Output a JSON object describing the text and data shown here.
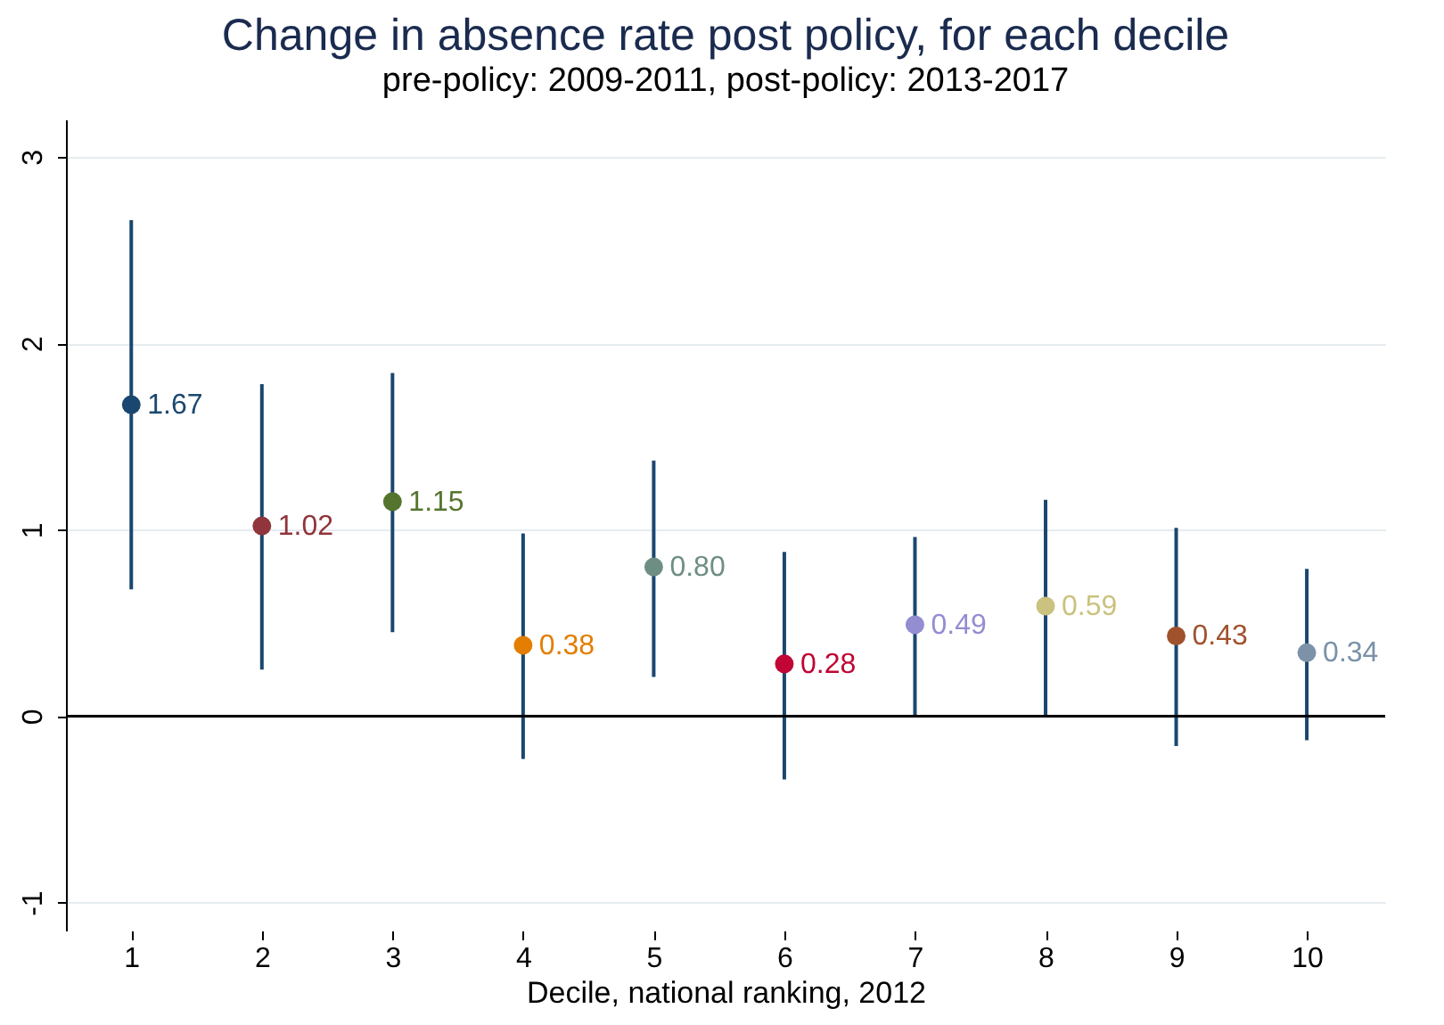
{
  "chart_data": {
    "type": "scatter",
    "title": "Change in absence rate post policy, for each decile",
    "subtitle": "pre-policy: 2009-2011, post-policy: 2013-2017",
    "xlabel": "Decile, national ranking, 2012",
    "x": [
      1,
      2,
      3,
      4,
      5,
      6,
      7,
      8,
      9,
      10
    ],
    "values": [
      1.67,
      1.02,
      1.15,
      0.38,
      0.8,
      0.28,
      0.49,
      0.59,
      0.43,
      0.34
    ],
    "errors": [
      [
        0.68,
        2.66
      ],
      [
        0.25,
        1.78
      ],
      [
        0.45,
        1.84
      ],
      [
        -0.23,
        0.98
      ],
      [
        0.21,
        1.37
      ],
      [
        -0.34,
        0.88
      ],
      [
        0.0,
        0.96
      ],
      [
        0.0,
        1.16
      ],
      [
        -0.16,
        1.01
      ],
      [
        -0.13,
        0.79
      ]
    ],
    "colors": [
      "#1a476f",
      "#90353b",
      "#55752f",
      "#e37e00",
      "#6e8e84",
      "#c10534",
      "#938dd2",
      "#cac27e",
      "#a0522d",
      "#7b92a8"
    ],
    "xlim": [
      0.5,
      10.6
    ],
    "xticks": [
      1,
      2,
      3,
      4,
      5,
      6,
      7,
      8,
      9,
      10
    ],
    "ylim": [
      -1.15,
      3.2
    ],
    "yticks": [
      -1,
      0,
      1,
      2,
      3
    ],
    "ref_lines": [
      {
        "axis": "y",
        "value": 0,
        "color": "#000000"
      }
    ],
    "value_labels": [
      "1.67",
      "1.02",
      "1.15",
      "0.38",
      "0.80",
      "0.28",
      "0.49",
      "0.59",
      "0.43",
      "0.34"
    ],
    "grid": "y",
    "marker": "circle"
  }
}
